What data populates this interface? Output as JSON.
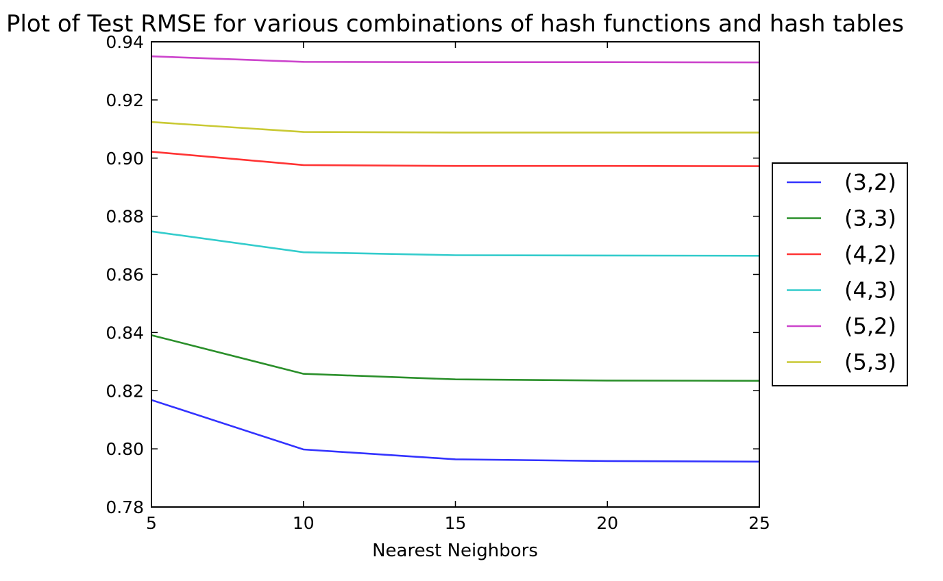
{
  "chart_data": {
    "type": "line",
    "title": "Plot of Test RMSE for various combinations of hash functions and hash tables",
    "xlabel": "Nearest Neighbors",
    "ylabel": "",
    "x": [
      5,
      10,
      15,
      20,
      25
    ],
    "xlim": [
      5,
      25
    ],
    "ylim": [
      0.78,
      0.94
    ],
    "xticks": [
      5,
      10,
      15,
      20,
      25
    ],
    "xtick_labels": [
      "5",
      "10",
      "15",
      "20",
      "25"
    ],
    "yticks": [
      0.78,
      0.8,
      0.82,
      0.84,
      0.86,
      0.88,
      0.9,
      0.92,
      0.94
    ],
    "ytick_labels": [
      "0.78",
      "0.80",
      "0.82",
      "0.84",
      "0.86",
      "0.88",
      "0.90",
      "0.92",
      "0.94"
    ],
    "grid": false,
    "legend_position": "right, outside plot area",
    "series": [
      {
        "name": "(3,2)",
        "color": "#3333ff",
        "values": [
          0.8168,
          0.7998,
          0.7964,
          0.7958,
          0.7956
        ]
      },
      {
        "name": "(3,3)",
        "color": "#2a8f2a",
        "values": [
          0.8391,
          0.8258,
          0.8239,
          0.8235,
          0.8234
        ]
      },
      {
        "name": "(4,2)",
        "color": "#ff3333",
        "values": [
          0.9022,
          0.8976,
          0.8973,
          0.8973,
          0.8972
        ]
      },
      {
        "name": "(4,3)",
        "color": "#33cccc",
        "values": [
          0.8748,
          0.8676,
          0.8666,
          0.8665,
          0.8664
        ]
      },
      {
        "name": "(5,2)",
        "color": "#cc44cc",
        "values": [
          0.935,
          0.9331,
          0.933,
          0.933,
          0.9329
        ]
      },
      {
        "name": "(5,3)",
        "color": "#c9c933",
        "values": [
          0.9124,
          0.909,
          0.9088,
          0.9088,
          0.9088
        ]
      }
    ]
  }
}
